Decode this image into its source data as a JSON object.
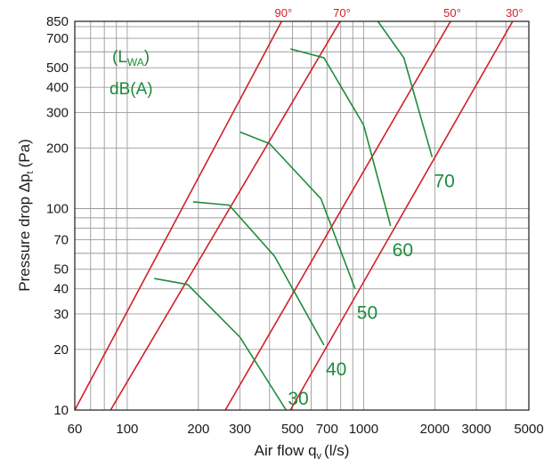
{
  "chart_data": {
    "type": "line",
    "xscale": "log",
    "yscale": "log",
    "xlabel": "Air flow q",
    "xlabel_sub": "v",
    "xlabel_unit": "(l/s)",
    "ylabel": "Pressure drop Δp",
    "ylabel_sub": "t",
    "ylabel_unit": "(Pa)",
    "xlim": [
      60,
      5000
    ],
    "ylim": [
      10,
      850
    ],
    "x_ticks": [
      60,
      100,
      200,
      300,
      500,
      700,
      1000,
      2000,
      3000,
      5000
    ],
    "x_tick_labels": [
      "60",
      "100",
      "200",
      "300",
      "500",
      "700",
      "1000",
      "2000",
      "3000",
      "5000"
    ],
    "y_ticks": [
      10,
      20,
      30,
      40,
      50,
      70,
      100,
      200,
      300,
      400,
      500,
      700,
      850
    ],
    "y_tick_labels": [
      "10",
      "20",
      "30",
      "40",
      "50",
      "70",
      "100",
      "200",
      "300",
      "400",
      "500",
      "700",
      "850"
    ],
    "legend_title_main": "(L",
    "legend_title_sub": "WA",
    "legend_title_close": ")",
    "legend_unit": "dB(A)",
    "colors": {
      "angle_lines": "#d0202a",
      "sound_lines": "#1e8c3c",
      "grid": "#9a9a9a"
    },
    "angle_series": [
      {
        "name": "90°",
        "points": [
          [
            60,
            10
          ],
          [
            450,
            850
          ]
        ]
      },
      {
        "name": "70°",
        "points": [
          [
            85,
            10
          ],
          [
            795,
            850
          ]
        ]
      },
      {
        "name": "50°",
        "points": [
          [
            260,
            10
          ],
          [
            2330,
            850
          ]
        ]
      },
      {
        "name": "30°",
        "points": [
          [
            490,
            10
          ],
          [
            4270,
            850
          ]
        ]
      }
    ],
    "sound_series": [
      {
        "name": "30",
        "points": [
          [
            130,
            45
          ],
          [
            180,
            42
          ],
          [
            300,
            23
          ],
          [
            470,
            10
          ]
        ]
      },
      {
        "name": "40",
        "points": [
          [
            190,
            108
          ],
          [
            270,
            104
          ],
          [
            420,
            58
          ],
          [
            680,
            21
          ]
        ]
      },
      {
        "name": "50",
        "points": [
          [
            300,
            240
          ],
          [
            400,
            210
          ],
          [
            660,
            112
          ],
          [
            920,
            40
          ]
        ]
      },
      {
        "name": "60",
        "points": [
          [
            490,
            620
          ],
          [
            680,
            560
          ],
          [
            1000,
            260
          ],
          [
            1300,
            82
          ]
        ]
      },
      {
        "name": "70",
        "points": [
          [
            1150,
            850
          ],
          [
            1480,
            560
          ],
          [
            1950,
            180
          ]
        ]
      }
    ]
  }
}
